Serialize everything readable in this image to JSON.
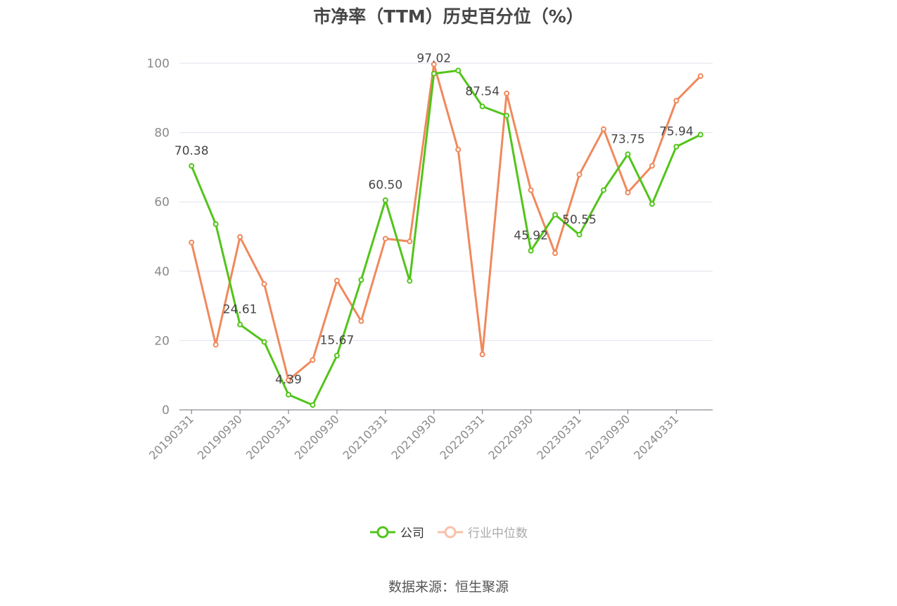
{
  "chart_data": {
    "type": "line",
    "title": "市净率（TTM）历史百分位（%）",
    "xlabel": "",
    "ylabel": "",
    "ylim": [
      0,
      100
    ],
    "yticks": [
      0,
      20,
      40,
      60,
      80,
      100
    ],
    "grid": true,
    "legend_position": "bottom",
    "x": [
      "20190331",
      "20190630",
      "20190930",
      "20191231",
      "20200331",
      "20200630",
      "20200930",
      "20201231",
      "20210331",
      "20210630",
      "20210930",
      "20211231",
      "20220331",
      "20220630",
      "20220930",
      "20221231",
      "20230331",
      "20230630",
      "20230930",
      "20231231",
      "20240331",
      "20240630"
    ],
    "x_tick_labels": [
      "20190331",
      "20190930",
      "20200331",
      "20200930",
      "20210331",
      "20210930",
      "20220331",
      "20220930",
      "20230331",
      "20230930",
      "20240331"
    ],
    "series": [
      {
        "name": "公司",
        "color": "#52c41a",
        "values": [
          70.38,
          53.6,
          24.61,
          19.6,
          4.39,
          1.4,
          15.67,
          37.5,
          60.5,
          37.2,
          97.02,
          97.9,
          87.54,
          84.9,
          45.92,
          56.3,
          50.55,
          63.4,
          73.75,
          59.4,
          75.94,
          79.4
        ],
        "data_labels": {
          "0": "70.38",
          "2": "24.61",
          "4": "4.39",
          "6": "15.67",
          "8": "60.50",
          "10": "97.02",
          "12": "87.54",
          "14": "45.92",
          "16": "50.55",
          "18": "73.75",
          "20": "75.94"
        }
      },
      {
        "name": "行业中位数",
        "color": "#f0895c",
        "values": [
          48.3,
          18.8,
          49.9,
          36.3,
          8.6,
          14.4,
          37.3,
          25.6,
          49.4,
          48.6,
          99.7,
          75.1,
          16.0,
          91.3,
          63.4,
          45.2,
          67.9,
          81.0,
          62.7,
          70.4,
          89.2,
          96.3
        ]
      }
    ]
  },
  "source": "数据来源：恒生聚源"
}
